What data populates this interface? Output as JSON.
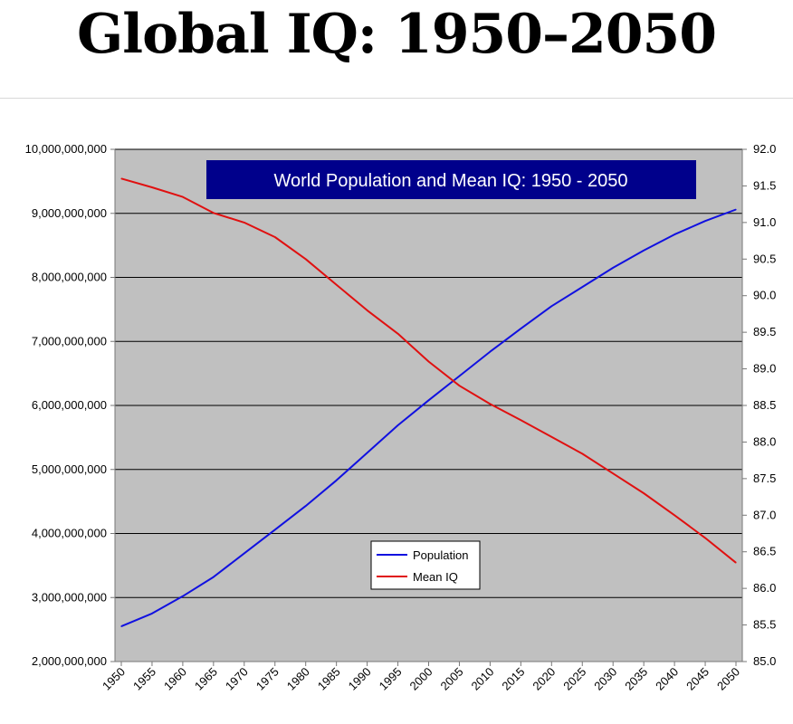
{
  "page": {
    "title": "Global IQ: 1950–2050"
  },
  "chart_data": {
    "type": "line",
    "title": "World Population and Mean IQ: 1950 - 2050",
    "x_ticks": [
      "1950",
      "1955",
      "1960",
      "1965",
      "1970",
      "1975",
      "1980",
      "1985",
      "1990",
      "1995",
      "2000",
      "2005",
      "2010",
      "2015",
      "2020",
      "2025",
      "2030",
      "2035",
      "2040",
      "2045",
      "2050"
    ],
    "x_range": [
      1950,
      2050
    ],
    "y_left": {
      "range": [
        2000000000,
        10000000000
      ],
      "tick_labels": [
        "2,000,000,000",
        "3,000,000,000",
        "4,000,000,000",
        "5,000,000,000",
        "6,000,000,000",
        "7,000,000,000",
        "8,000,000,000",
        "9,000,000,000",
        "10,000,000,000"
      ]
    },
    "y_right": {
      "range": [
        85.0,
        92.0
      ],
      "tick_labels": [
        "85.0",
        "85.5",
        "86.0",
        "86.5",
        "87.0",
        "87.5",
        "88.0",
        "88.5",
        "89.0",
        "89.5",
        "90.0",
        "90.5",
        "91.0",
        "91.5",
        "92.0"
      ]
    },
    "grid": "horizontal",
    "legend_position": "bottom-center",
    "plot_background": "#c0c0c0",
    "banner_color": "#00008b",
    "series": [
      {
        "name": "Population",
        "axis": "left",
        "color": "#1010e0",
        "x": [
          1950,
          1955,
          1960,
          1965,
          1970,
          1975,
          1980,
          1985,
          1990,
          1995,
          2000,
          2005,
          2010,
          2015,
          2020,
          2025,
          2030,
          2035,
          2040,
          2045,
          2050
        ],
        "values": [
          2550000000,
          2750000000,
          3020000000,
          3320000000,
          3690000000,
          4060000000,
          4430000000,
          4830000000,
          5260000000,
          5690000000,
          6080000000,
          6460000000,
          6840000000,
          7200000000,
          7550000000,
          7850000000,
          8150000000,
          8420000000,
          8670000000,
          8880000000,
          9060000000
        ]
      },
      {
        "name": "Mean IQ",
        "axis": "right",
        "color": "#e01010",
        "x": [
          1950,
          1955,
          1960,
          1965,
          1970,
          1975,
          1980,
          1985,
          1990,
          1995,
          2000,
          2005,
          2010,
          2015,
          2020,
          2025,
          2030,
          2035,
          2040,
          2045,
          2050
        ],
        "values": [
          91.6,
          91.48,
          91.35,
          91.13,
          91.0,
          90.8,
          90.5,
          90.15,
          89.8,
          89.48,
          89.1,
          88.77,
          88.52,
          88.3,
          88.07,
          87.84,
          87.57,
          87.3,
          87.0,
          86.69,
          86.35
        ]
      }
    ]
  }
}
